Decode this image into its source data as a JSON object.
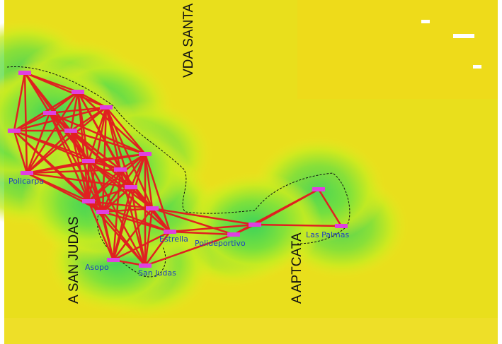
{
  "places": [
    "VDA SANTA",
    "A SAN JUDAS",
    "A APTCATA"
  ],
  "nodes": [
    {
      "label": "Policarpa"
    },
    {
      "label": "Estrella"
    },
    {
      "label": "Polideportivo"
    },
    {
      "label": "Las Palmas"
    },
    {
      "label": "San Judas"
    },
    {
      "label": "Asopo"
    }
  ]
}
